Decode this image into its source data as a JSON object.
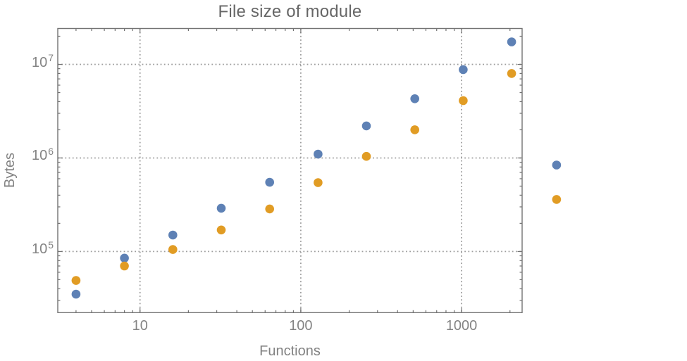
{
  "chart_data": {
    "type": "scatter",
    "title": "File size of module",
    "xlabel": "Functions",
    "ylabel": "Bytes",
    "x_scale": "log",
    "y_scale": "log",
    "xlim": [
      3.08,
      2380
    ],
    "ylim": [
      22200,
      24200000
    ],
    "grid": "dotted",
    "legend": "none",
    "x_ticks": [
      {
        "value": 10,
        "label": "10"
      },
      {
        "value": 100,
        "label": "100"
      },
      {
        "value": 1000,
        "label": "1000"
      }
    ],
    "y_ticks": [
      {
        "value": 100000,
        "base": "10",
        "exp": "5"
      },
      {
        "value": 1000000,
        "base": "10",
        "exp": "6"
      },
      {
        "value": 10000000,
        "base": "10",
        "exp": "7"
      }
    ],
    "series": [
      {
        "name": "series-1-blue",
        "color": "#5e81b5",
        "points": [
          [
            4,
            35000
          ],
          [
            8,
            85000
          ],
          [
            16,
            150000
          ],
          [
            32,
            290000
          ],
          [
            64,
            550000
          ],
          [
            128,
            1100000
          ],
          [
            256,
            2200000
          ],
          [
            512,
            4300000
          ],
          [
            1024,
            8800000
          ],
          [
            2048,
            17400000
          ],
          [
            3900,
            840000
          ]
        ]
      },
      {
        "name": "series-2-orange",
        "color": "#e19c24",
        "points": [
          [
            4,
            49000
          ],
          [
            8,
            70000
          ],
          [
            16,
            105000
          ],
          [
            32,
            170000
          ],
          [
            64,
            285000
          ],
          [
            128,
            545000
          ],
          [
            256,
            1040000
          ],
          [
            512,
            2000000
          ],
          [
            1024,
            4100000
          ],
          [
            2048,
            8000000
          ],
          [
            3900,
            360000
          ]
        ]
      }
    ]
  },
  "style_colors": {
    "frame": "#737373",
    "tick": "#737373",
    "gridline": "#9e9e9e",
    "title_text": "#666666",
    "axis_text": "#828282",
    "tick_text": "#848484",
    "background": "#ffffff"
  }
}
